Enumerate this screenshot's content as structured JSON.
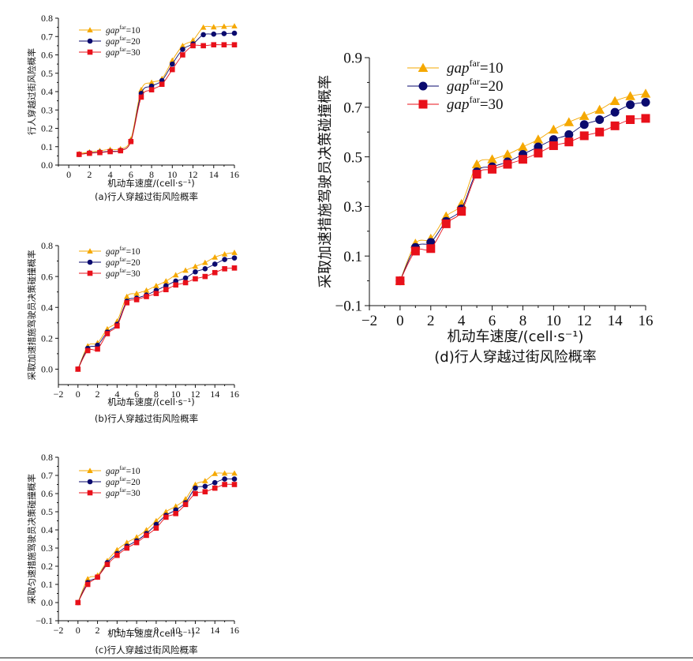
{
  "colors": {
    "gap10": "#F5A800",
    "gap20": "#0A0A6E",
    "gap30": "#E8101A"
  },
  "chart_data": [
    {
      "id": "a",
      "type": "line",
      "caption": "(a)行人穿越过街风险概率",
      "xlabel": "机动车速度/(cell·s⁻¹)",
      "ylabel": "行人穿越过街风险概率",
      "xlim": [
        -1,
        16
      ],
      "ylim": [
        0,
        0.8
      ],
      "xticks": [
        0,
        2,
        4,
        6,
        8,
        10,
        12,
        14,
        16
      ],
      "yticks": [
        0.0,
        0.1,
        0.2,
        0.3,
        0.4,
        0.5,
        0.6,
        0.7,
        0.8
      ],
      "ytick_labels": [
        "0.0",
        "0.1",
        "0.2",
        "0.3",
        "0.4",
        "0.5",
        "0.6",
        "0.7",
        "0.8"
      ],
      "legend": "top-left",
      "x": [
        1,
        2,
        3,
        4,
        5,
        6,
        7,
        8,
        9,
        10,
        11,
        12,
        13,
        14,
        15,
        16
      ],
      "series": [
        {
          "name": "gap^far=10",
          "key": "gap10",
          "marker": "triangle",
          "values": [
            0.062,
            0.071,
            0.078,
            0.085,
            0.088,
            0.14,
            0.41,
            0.45,
            0.47,
            0.57,
            0.65,
            0.68,
            0.75,
            0.752,
            0.755,
            0.757
          ]
        },
        {
          "name": "gap^far=20",
          "key": "gap20",
          "marker": "circle",
          "values": [
            0.058,
            0.066,
            0.07,
            0.075,
            0.08,
            0.13,
            0.39,
            0.43,
            0.46,
            0.55,
            0.63,
            0.66,
            0.71,
            0.713,
            0.716,
            0.718
          ]
        },
        {
          "name": "gap^far=30",
          "key": "gap30",
          "marker": "square",
          "values": [
            0.058,
            0.064,
            0.068,
            0.073,
            0.078,
            0.128,
            0.37,
            0.41,
            0.44,
            0.52,
            0.6,
            0.65,
            0.65,
            0.655,
            0.655,
            0.655
          ]
        }
      ]
    },
    {
      "id": "b",
      "type": "line",
      "caption": "(b)行人穿越过街风险概率",
      "xlabel": "机动车速度/(cell·s⁻¹)",
      "ylabel": "采取加速措施驾驶员决策碰撞概率",
      "xlim": [
        -2,
        16
      ],
      "ylim": [
        -0.1,
        0.8
      ],
      "xticks": [
        -2,
        0,
        2,
        4,
        6,
        8,
        10,
        12,
        14,
        16
      ],
      "yticks": [
        0.0,
        0.2,
        0.4,
        0.6,
        0.8
      ],
      "ytick_labels": [
        "0.0",
        "0.2",
        "0.4",
        "0.6",
        "0.8"
      ],
      "legend": "top-left",
      "x": [
        0,
        1,
        2,
        3,
        4,
        5,
        6,
        7,
        8,
        9,
        10,
        11,
        12,
        13,
        14,
        15,
        16
      ],
      "series": [
        {
          "name": "gap^far=10",
          "key": "gap10",
          "marker": "triangle",
          "values": [
            0.0,
            0.15,
            0.17,
            0.26,
            0.31,
            0.47,
            0.49,
            0.51,
            0.54,
            0.57,
            0.61,
            0.64,
            0.665,
            0.69,
            0.725,
            0.745,
            0.755
          ]
        },
        {
          "name": "gap^far=20",
          "key": "gap20",
          "marker": "circle",
          "values": [
            0.0,
            0.135,
            0.155,
            0.24,
            0.29,
            0.44,
            0.46,
            0.48,
            0.51,
            0.54,
            0.57,
            0.59,
            0.63,
            0.65,
            0.68,
            0.71,
            0.72
          ]
        },
        {
          "name": "gap^far=30",
          "key": "gap30",
          "marker": "square",
          "values": [
            0.0,
            0.12,
            0.13,
            0.23,
            0.28,
            0.43,
            0.45,
            0.47,
            0.49,
            0.515,
            0.545,
            0.56,
            0.585,
            0.6,
            0.625,
            0.65,
            0.655
          ]
        }
      ]
    },
    {
      "id": "c",
      "type": "line",
      "caption": "(c)行人穿越过街风险概率",
      "xlabel": "机动车速度/(cell·s⁻¹)",
      "ylabel": "采取匀速措施驾驶员决策碰撞概率",
      "xlim": [
        -2,
        16
      ],
      "ylim": [
        -0.1,
        0.8
      ],
      "xticks": [
        -2,
        0,
        2,
        4,
        6,
        8,
        10,
        12,
        14,
        16
      ],
      "yticks": [
        -0.1,
        0.0,
        0.1,
        0.2,
        0.3,
        0.4,
        0.5,
        0.6,
        0.7,
        0.8
      ],
      "ytick_labels": [
        "−0.1",
        "0.0",
        "0.1",
        "0.2",
        "0.3",
        "0.4",
        "0.5",
        "0.6",
        "0.7",
        "0.8"
      ],
      "legend": "top-left",
      "x": [
        0,
        1,
        2,
        3,
        4,
        5,
        6,
        7,
        8,
        9,
        10,
        11,
        12,
        13,
        14,
        15,
        16
      ],
      "series": [
        {
          "name": "gap^far=10",
          "key": "gap10",
          "marker": "triangle",
          "values": [
            0.0,
            0.13,
            0.15,
            0.23,
            0.29,
            0.33,
            0.36,
            0.4,
            0.45,
            0.5,
            0.53,
            0.57,
            0.65,
            0.67,
            0.71,
            0.712,
            0.712
          ]
        },
        {
          "name": "gap^far=20",
          "key": "gap20",
          "marker": "circle",
          "values": [
            0.0,
            0.11,
            0.14,
            0.22,
            0.27,
            0.31,
            0.34,
            0.38,
            0.43,
            0.48,
            0.51,
            0.55,
            0.63,
            0.64,
            0.66,
            0.68,
            0.68
          ]
        },
        {
          "name": "gap^far=30",
          "key": "gap30",
          "marker": "square",
          "values": [
            0.0,
            0.1,
            0.14,
            0.21,
            0.26,
            0.3,
            0.33,
            0.37,
            0.41,
            0.47,
            0.49,
            0.54,
            0.6,
            0.61,
            0.63,
            0.65,
            0.65
          ]
        }
      ]
    },
    {
      "id": "d",
      "type": "line",
      "caption": "(d)行人穿越过街风险概率",
      "xlabel": "机动车速度/(cell·s⁻¹)",
      "ylabel": "采取加速措施驾驶员决策碰撞概率",
      "xlim": [
        -2,
        16
      ],
      "ylim": [
        -0.1,
        0.9
      ],
      "xticks": [
        -2,
        0,
        2,
        4,
        6,
        8,
        10,
        12,
        14,
        16
      ],
      "yticks": [
        -0.1,
        0.1,
        0.3,
        0.5,
        0.7,
        0.9
      ],
      "ytick_labels": [
        "−0.1",
        "0.1",
        "0.3",
        "0.5",
        "0.7",
        "0.9"
      ],
      "legend": "top-left",
      "x": [
        0,
        1,
        2,
        3,
        4,
        5,
        6,
        7,
        8,
        9,
        10,
        11,
        12,
        13,
        14,
        15,
        16
      ],
      "series": [
        {
          "name": "gap^far=10",
          "key": "gap10",
          "marker": "triangle",
          "values": [
            0.0,
            0.15,
            0.17,
            0.26,
            0.31,
            0.47,
            0.49,
            0.51,
            0.54,
            0.57,
            0.61,
            0.64,
            0.665,
            0.69,
            0.725,
            0.745,
            0.755
          ]
        },
        {
          "name": "gap^far=20",
          "key": "gap20",
          "marker": "circle",
          "values": [
            0.0,
            0.135,
            0.155,
            0.24,
            0.29,
            0.44,
            0.46,
            0.48,
            0.51,
            0.54,
            0.57,
            0.59,
            0.63,
            0.65,
            0.68,
            0.71,
            0.72
          ]
        },
        {
          "name": "gap^far=30",
          "key": "gap30",
          "marker": "square",
          "values": [
            0.0,
            0.12,
            0.13,
            0.23,
            0.28,
            0.43,
            0.45,
            0.47,
            0.49,
            0.515,
            0.545,
            0.56,
            0.585,
            0.6,
            0.625,
            0.65,
            0.655
          ]
        }
      ]
    }
  ],
  "legend_labels": {
    "prefix": "gap",
    "sup": "far",
    "values": [
      "=10",
      "=20",
      "=30"
    ]
  }
}
